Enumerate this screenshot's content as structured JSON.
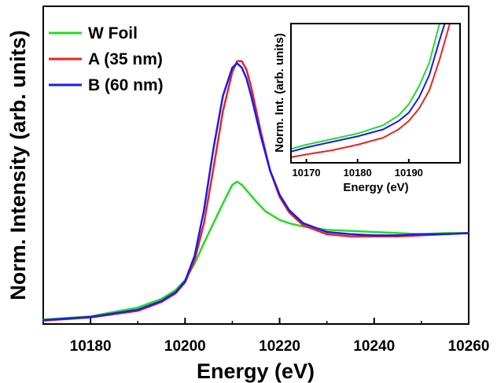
{
  "chart_data": [
    {
      "type": "line",
      "xlabel": "Energy (eV)",
      "ylabel": "Norm. Intensity (arb. units)",
      "xlim": [
        10170,
        10260
      ],
      "ylim": [
        0,
        1.45
      ],
      "xticks": [
        10180,
        10200,
        10220,
        10240,
        10260
      ],
      "y_tick_labels": false,
      "legend": "top-left",
      "series": [
        {
          "name": "W Foil",
          "color": "#22dd22",
          "x": [
            10170,
            10180,
            10190,
            10195,
            10198,
            10200,
            10202,
            10204,
            10206,
            10208,
            10210,
            10211,
            10212,
            10213,
            10215,
            10217,
            10220,
            10222,
            10225,
            10230,
            10235,
            10240,
            10245,
            10250,
            10255,
            10260
          ],
          "y": [
            0.02,
            0.035,
            0.075,
            0.115,
            0.155,
            0.2,
            0.275,
            0.37,
            0.46,
            0.55,
            0.635,
            0.65,
            0.635,
            0.61,
            0.56,
            0.515,
            0.475,
            0.46,
            0.445,
            0.43,
            0.425,
            0.42,
            0.415,
            0.41,
            0.415,
            0.415
          ]
        },
        {
          "name": "A (35 nm)",
          "color": "#ee2222",
          "x": [
            10170,
            10180,
            10190,
            10195,
            10198,
            10200,
            10202,
            10204,
            10206,
            10208,
            10210,
            10211,
            10212,
            10213,
            10214,
            10216,
            10218,
            10220,
            10222,
            10225,
            10230,
            10235,
            10240,
            10245,
            10250,
            10255,
            10260
          ],
          "y": [
            0.015,
            0.03,
            0.06,
            0.1,
            0.14,
            0.19,
            0.29,
            0.46,
            0.71,
            0.97,
            1.15,
            1.2,
            1.2,
            1.16,
            1.08,
            0.88,
            0.7,
            0.58,
            0.51,
            0.45,
            0.41,
            0.4,
            0.4,
            0.4,
            0.405,
            0.41,
            0.415
          ]
        },
        {
          "name": "B (60 nm)",
          "color": "#1a1aee",
          "x": [
            10170,
            10180,
            10190,
            10195,
            10198,
            10200,
            10202,
            10204,
            10206,
            10208,
            10210,
            10211,
            10212,
            10213,
            10214,
            10216,
            10218,
            10220,
            10222,
            10225,
            10230,
            10235,
            10240,
            10245,
            10250,
            10255,
            10260
          ],
          "y": [
            0.018,
            0.032,
            0.065,
            0.105,
            0.145,
            0.195,
            0.31,
            0.52,
            0.8,
            1.04,
            1.17,
            1.19,
            1.17,
            1.12,
            1.04,
            0.86,
            0.7,
            0.59,
            0.52,
            0.46,
            0.42,
            0.41,
            0.405,
            0.405,
            0.41,
            0.41,
            0.415
          ]
        }
      ]
    },
    {
      "type": "line",
      "inset": true,
      "xlabel": "Energy (eV)",
      "ylabel": "Norm. Int. (arb. units)",
      "xlim": [
        10167,
        10200
      ],
      "ylim": [
        0,
        1
      ],
      "xticks": [
        10170,
        10180,
        10190
      ],
      "y_tick_labels": false,
      "series": [
        {
          "name": "W Foil",
          "color": "#22dd22",
          "x": [
            10167,
            10170,
            10175,
            10180,
            10185,
            10188,
            10190,
            10192,
            10194,
            10196
          ],
          "y": [
            0.1,
            0.13,
            0.17,
            0.21,
            0.27,
            0.34,
            0.42,
            0.55,
            0.72,
            1.0
          ]
        },
        {
          "name": "A (35 nm)",
          "color": "#ee2222",
          "x": [
            10167,
            10170,
            10175,
            10180,
            10185,
            10188,
            10190,
            10192,
            10194,
            10196,
            10198
          ],
          "y": [
            0.04,
            0.06,
            0.09,
            0.13,
            0.18,
            0.24,
            0.3,
            0.39,
            0.52,
            0.74,
            1.0
          ]
        },
        {
          "name": "B (60 nm)",
          "color": "#1a1aee",
          "x": [
            10167,
            10170,
            10175,
            10180,
            10185,
            10188,
            10190,
            10192,
            10194,
            10196,
            10197
          ],
          "y": [
            0.08,
            0.11,
            0.15,
            0.19,
            0.24,
            0.3,
            0.36,
            0.47,
            0.63,
            0.88,
            1.0
          ]
        }
      ]
    }
  ]
}
